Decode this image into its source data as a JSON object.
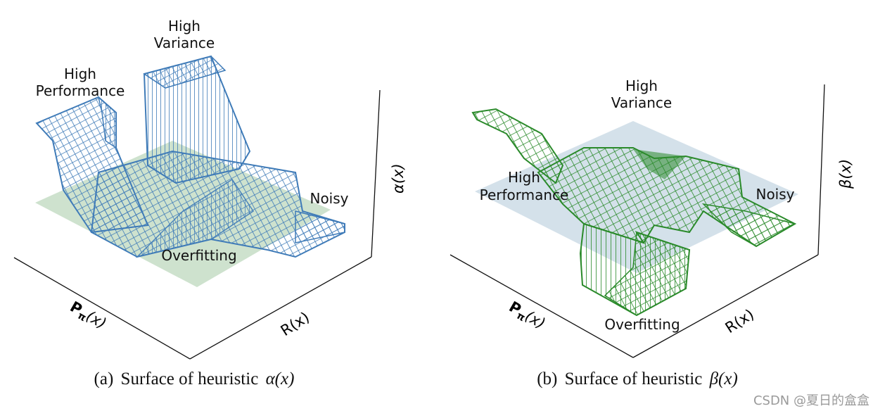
{
  "panels": [
    {
      "id": "a",
      "caption_prefix": "(a)",
      "caption_text": "Surface of heuristic",
      "caption_symbol": "α(x)",
      "x_axis_label_main": "P",
      "x_axis_label_sub": "π",
      "x_axis_label_arg": "(x)",
      "y_axis_label": "R(x)",
      "z_axis_label": "α(x)",
      "regions": {
        "high_variance": [
          "High",
          "Variance"
        ],
        "high_performance": [
          "High",
          "Performance"
        ],
        "noisy": "Noisy",
        "overfitting": "Overfitting"
      },
      "colors": {
        "mesh": "#3f7bb8",
        "plane": "#c9dfc9"
      }
    },
    {
      "id": "b",
      "caption_prefix": "(b)",
      "caption_text": "Surface of heuristic",
      "caption_symbol": "β(x)",
      "x_axis_label_main": "P",
      "x_axis_label_sub": "π",
      "x_axis_label_arg": "(x)",
      "y_axis_label": "R(x)",
      "z_axis_label": "β(x)",
      "regions": {
        "high_variance": [
          "High",
          "Variance"
        ],
        "high_performance": [
          "High",
          "Performance"
        ],
        "noisy": "Noisy",
        "overfitting": "Overfitting"
      },
      "colors": {
        "mesh": "#2a8a2a",
        "plane": "#d2dfe9"
      }
    }
  ],
  "watermark": "CSDN @夏日的盒盒"
}
